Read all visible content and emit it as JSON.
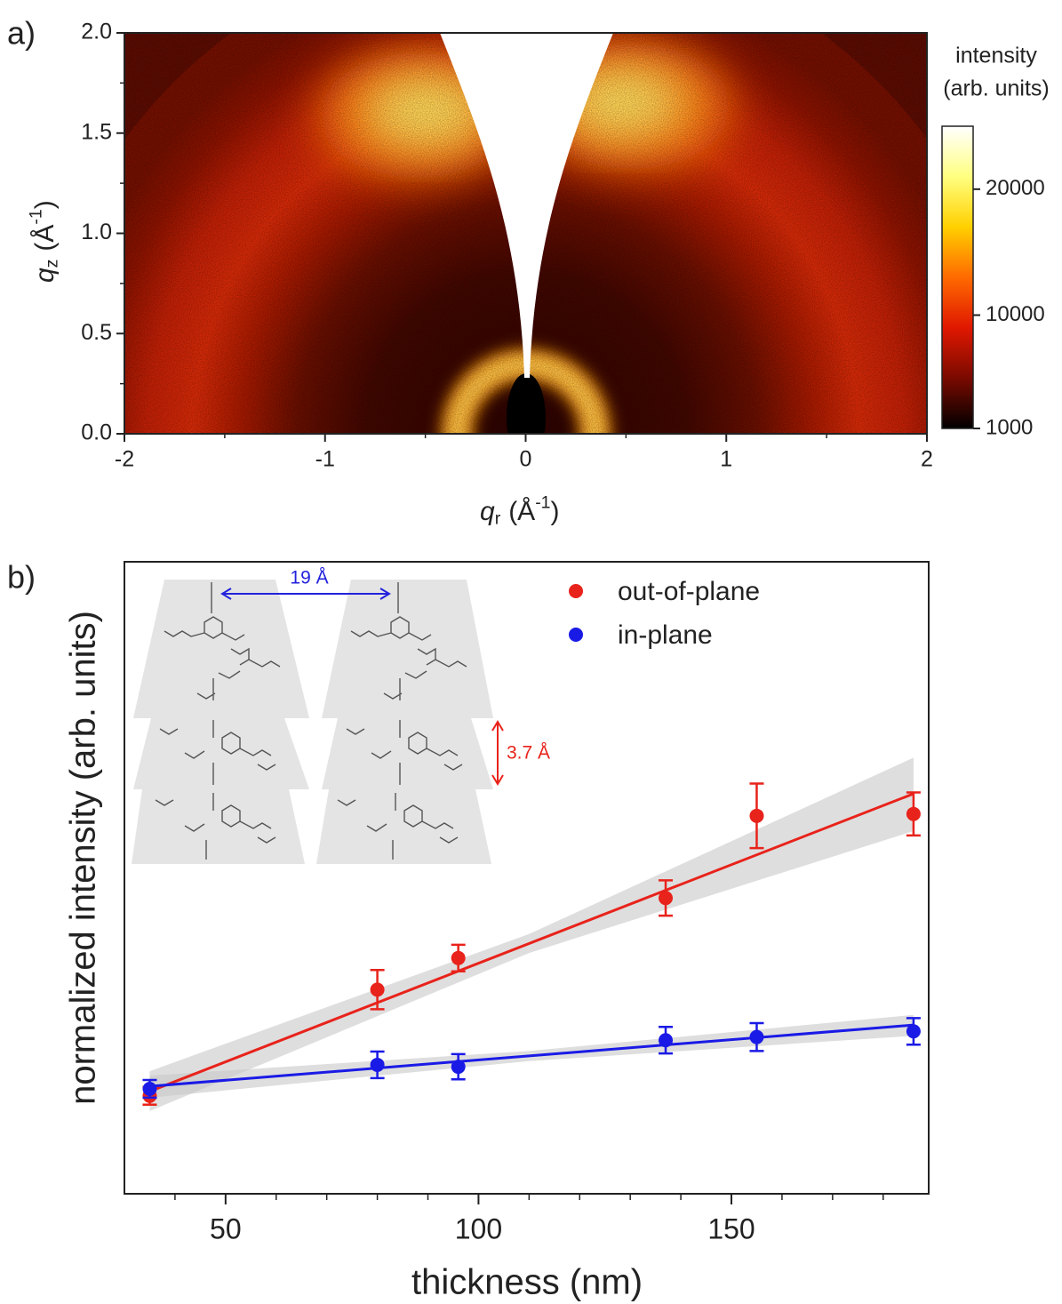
{
  "chart_data": [
    {
      "type": "heatmap",
      "panel_label": "a)",
      "x_label": {
        "main": "q",
        "sub": "r",
        "unit": "(Å",
        "sup": "-1",
        "end": ")"
      },
      "y_label": {
        "main": "q",
        "sub": "z",
        "unit": "(Å",
        "sup": "-1",
        "end": ")"
      },
      "xlim": [
        -2,
        2
      ],
      "xticks": [
        -2,
        -1,
        0,
        1,
        2
      ],
      "xminorticks": [
        -1.5,
        -0.5,
        0.5,
        1.5
      ],
      "ylim": [
        0,
        2
      ],
      "yticks": [
        {
          "value": 0,
          "label": "0.0"
        },
        0.5,
        {
          "value": 1,
          "label": "1.0"
        },
        1.5,
        {
          "value": 2,
          "label": "2.0"
        }
      ],
      "yminorticks": [
        0.25,
        0.75,
        1.25,
        1.75
      ],
      "colorbar": {
        "title": [
          "intensity",
          "(arb. units)"
        ],
        "lim": [
          1000,
          25000
        ],
        "ticks": [
          1000,
          10000,
          20000
        ],
        "colormap": [
          "#000000",
          "#7a0a00",
          "#e01800",
          "#ff6a00",
          "#ffd000",
          "#ffff80",
          "#ffffff"
        ]
      }
    },
    {
      "type": "scatter",
      "panel_label": "b)",
      "x_label": "thickness (nm)",
      "y_label": "normalized intensity (arb. units)",
      "xlim": [
        30,
        189
      ],
      "xticks": [
        50,
        100,
        150
      ],
      "xminorticks": [
        40,
        60,
        70,
        80,
        90,
        110,
        120,
        130,
        140,
        160,
        170,
        180
      ],
      "ylim": [
        0,
        1
      ],
      "series": [
        {
          "name": "out-of-plane",
          "color": "#e8231b",
          "x": [
            35,
            80,
            96,
            137,
            155,
            186
          ],
          "values": [
            0.155,
            0.323,
            0.373,
            0.468,
            0.598,
            0.601
          ],
          "errors": [
            0.014,
            0.031,
            0.021,
            0.028,
            0.051,
            0.034
          ],
          "fit": {
            "x": [
              35,
              186
            ],
            "values": [
              0.162,
              0.633
            ],
            "band_x": [
              35,
              110,
              186
            ],
            "band_lower": [
              0.131,
              0.381,
              0.574
            ],
            "band_upper": [
              0.194,
              0.411,
              0.69
            ]
          }
        },
        {
          "name": "in-plane",
          "color": "#1a1ae6",
          "x": [
            35,
            80,
            96,
            137,
            155,
            186
          ],
          "values": [
            0.166,
            0.204,
            0.201,
            0.243,
            0.248,
            0.257
          ],
          "errors": [
            0.014,
            0.021,
            0.02,
            0.021,
            0.022,
            0.021
          ],
          "fit": {
            "x": [
              35,
              186
            ],
            "values": [
              0.17,
              0.267
            ],
            "band_x": [
              35,
              110,
              186
            ],
            "band_lower": [
              0.152,
              0.21,
              0.25
            ],
            "band_upper": [
              0.187,
              0.226,
              0.283
            ]
          }
        }
      ],
      "annotations": [
        {
          "text": "19 Å",
          "color": "#2222dd"
        },
        {
          "text": "3.7 Å",
          "color": "#e8231b"
        }
      ]
    }
  ]
}
